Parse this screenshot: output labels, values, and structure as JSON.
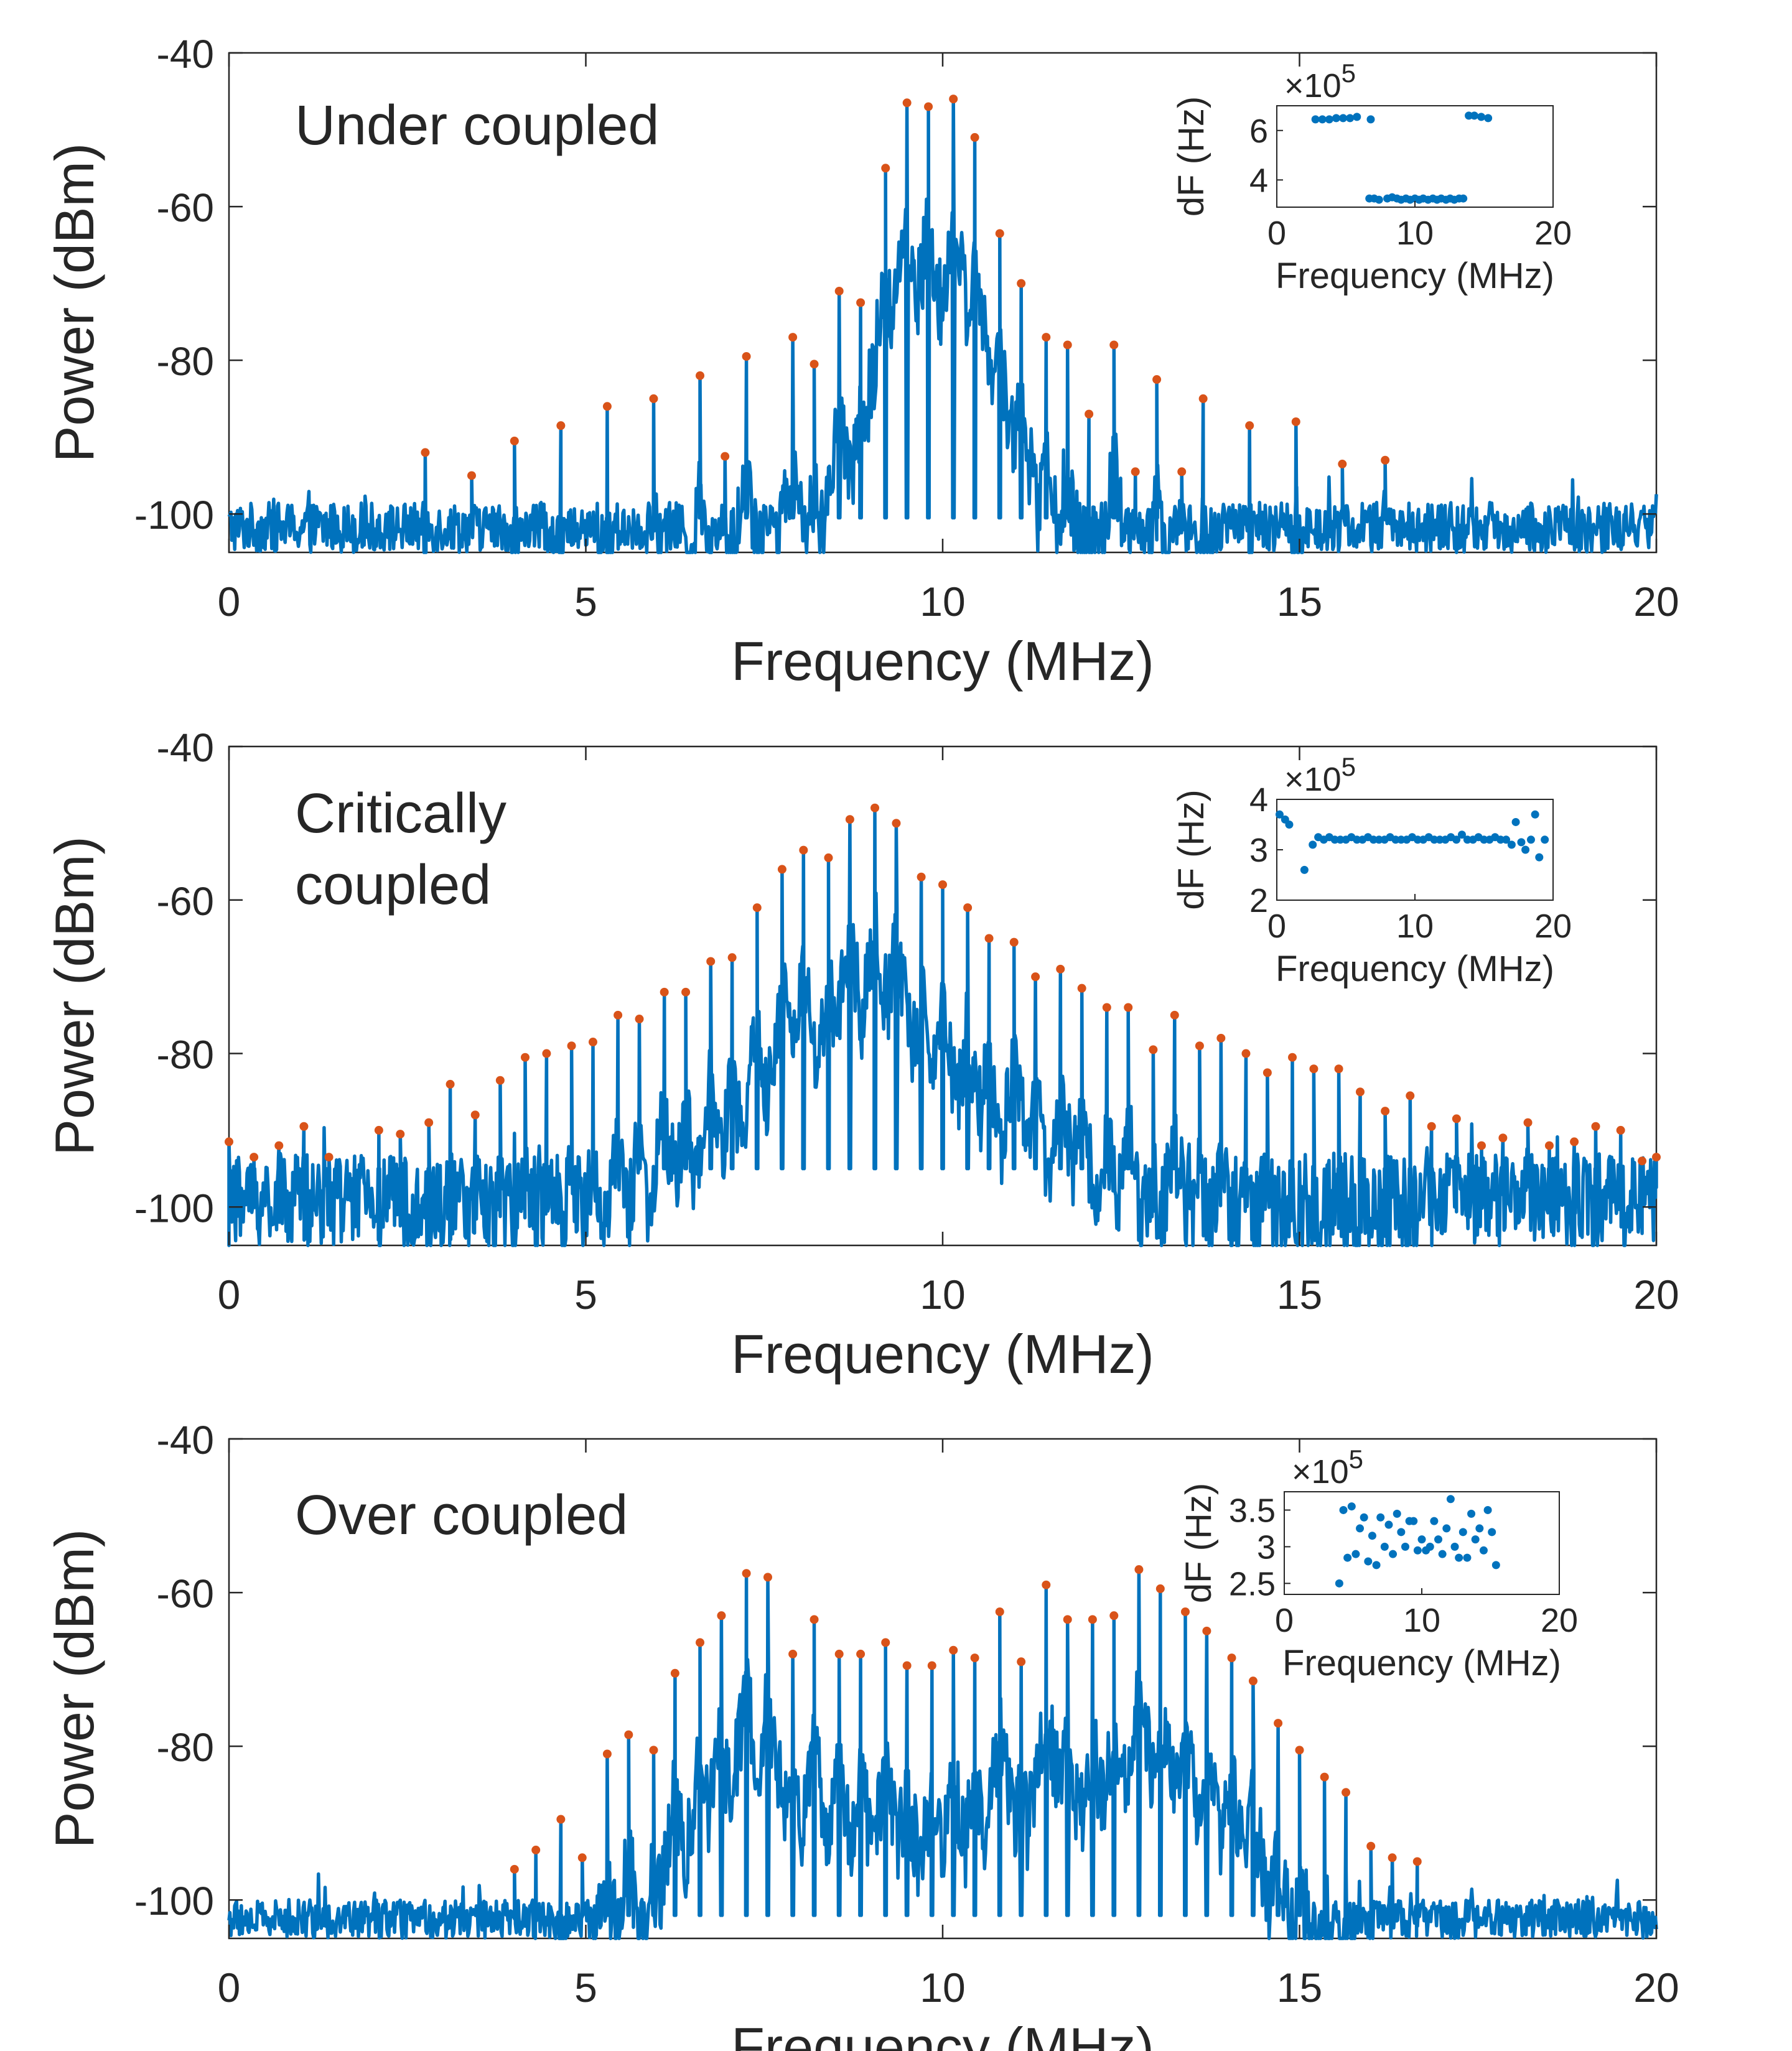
{
  "figure": {
    "colors": {
      "line": "#0072BD",
      "peak_marker": "#D95319",
      "axes": "#262626",
      "inset_points": "#0072BD"
    }
  },
  "chart_data": [
    {
      "type": "line",
      "annotation": "Under coupled",
      "xlabel": "Frequency (MHz)",
      "ylabel": "Power (dBm)",
      "xlim": [
        0,
        20
      ],
      "ylim": [
        -105,
        -40
      ],
      "xticks": [
        0,
        5,
        10,
        15,
        20
      ],
      "yticks": [
        -40,
        -60,
        -80,
        -100
      ],
      "noise_floor": {
        "min": -105,
        "max": -98.5
      },
      "peaks": [
        {
          "x": 2.75,
          "y": -92
        },
        {
          "x": 3.4,
          "y": -95
        },
        {
          "x": 4.0,
          "y": -90.5
        },
        {
          "x": 4.65,
          "y": -88.5
        },
        {
          "x": 5.3,
          "y": -86
        },
        {
          "x": 5.95,
          "y": -85
        },
        {
          "x": 6.6,
          "y": -82
        },
        {
          "x": 6.95,
          "y": -92.5
        },
        {
          "x": 7.25,
          "y": -79.5
        },
        {
          "x": 7.9,
          "y": -77
        },
        {
          "x": 8.2,
          "y": -80.5
        },
        {
          "x": 8.55,
          "y": -71
        },
        {
          "x": 8.85,
          "y": -72.5
        },
        {
          "x": 9.2,
          "y": -55
        },
        {
          "x": 9.5,
          "y": -46.5
        },
        {
          "x": 9.8,
          "y": -47
        },
        {
          "x": 10.15,
          "y": -46
        },
        {
          "x": 10.45,
          "y": -51
        },
        {
          "x": 10.8,
          "y": -63.5
        },
        {
          "x": 11.1,
          "y": -70
        },
        {
          "x": 11.45,
          "y": -77
        },
        {
          "x": 11.75,
          "y": -78
        },
        {
          "x": 12.05,
          "y": -87
        },
        {
          "x": 12.4,
          "y": -78
        },
        {
          "x": 12.7,
          "y": -94.5
        },
        {
          "x": 13.0,
          "y": -82.5
        },
        {
          "x": 13.35,
          "y": -94.5
        },
        {
          "x": 13.65,
          "y": -85
        },
        {
          "x": 14.3,
          "y": -88.5
        },
        {
          "x": 14.95,
          "y": -88
        },
        {
          "x": 15.6,
          "y": -93.5
        },
        {
          "x": 16.2,
          "y": -93
        }
      ],
      "inset": {
        "type": "scatter",
        "ylabel": "dF (Hz)",
        "xlabel": "Frequency (MHz)",
        "exponent_label": "×10",
        "exponent_power": "5",
        "xlim": [
          0,
          20
        ],
        "ylim": [
          2.9,
          7.0
        ],
        "xticks": [
          0,
          10,
          20
        ],
        "yticks": [
          4,
          6
        ],
        "points": [
          {
            "x": 2.8,
            "y": 6.45
          },
          {
            "x": 3.3,
            "y": 6.45
          },
          {
            "x": 3.8,
            "y": 6.45
          },
          {
            "x": 4.3,
            "y": 6.5
          },
          {
            "x": 4.8,
            "y": 6.5
          },
          {
            "x": 5.3,
            "y": 6.5
          },
          {
            "x": 5.8,
            "y": 6.55
          },
          {
            "x": 6.8,
            "y": 6.45
          },
          {
            "x": 6.7,
            "y": 3.25
          },
          {
            "x": 7.05,
            "y": 3.25
          },
          {
            "x": 7.4,
            "y": 3.2
          },
          {
            "x": 8.0,
            "y": 3.25
          },
          {
            "x": 8.35,
            "y": 3.3
          },
          {
            "x": 8.7,
            "y": 3.25
          },
          {
            "x": 9.0,
            "y": 3.2
          },
          {
            "x": 9.35,
            "y": 3.25
          },
          {
            "x": 9.65,
            "y": 3.2
          },
          {
            "x": 10.0,
            "y": 3.25
          },
          {
            "x": 10.3,
            "y": 3.2
          },
          {
            "x": 10.6,
            "y": 3.25
          },
          {
            "x": 10.95,
            "y": 3.2
          },
          {
            "x": 11.3,
            "y": 3.25
          },
          {
            "x": 11.6,
            "y": 3.2
          },
          {
            "x": 11.9,
            "y": 3.25
          },
          {
            "x": 12.25,
            "y": 3.2
          },
          {
            "x": 12.55,
            "y": 3.25
          },
          {
            "x": 12.85,
            "y": 3.2
          },
          {
            "x": 13.2,
            "y": 3.25
          },
          {
            "x": 13.5,
            "y": 3.25
          },
          {
            "x": 13.9,
            "y": 6.6
          },
          {
            "x": 14.3,
            "y": 6.6
          },
          {
            "x": 14.8,
            "y": 6.55
          },
          {
            "x": 15.3,
            "y": 6.5
          }
        ]
      }
    },
    {
      "type": "line",
      "annotation": "Critically\ncoupled",
      "xlabel": "Frequency (MHz)",
      "ylabel": "Power (dBm)",
      "xlim": [
        0,
        20
      ],
      "ylim": [
        -105,
        -40
      ],
      "xticks": [
        0,
        5,
        10,
        15,
        20
      ],
      "yticks": [
        -40,
        -60,
        -80,
        -100
      ],
      "noise_floor": {
        "min": -105,
        "max": -93
      },
      "peaks": [
        {
          "x": 0.0,
          "y": -91.5
        },
        {
          "x": 0.35,
          "y": -93.5
        },
        {
          "x": 0.7,
          "y": -92
        },
        {
          "x": 1.05,
          "y": -89.5
        },
        {
          "x": 1.4,
          "y": -93.5
        },
        {
          "x": 2.1,
          "y": -90
        },
        {
          "x": 2.4,
          "y": -90.5
        },
        {
          "x": 2.8,
          "y": -89
        },
        {
          "x": 3.1,
          "y": -84
        },
        {
          "x": 3.45,
          "y": -88
        },
        {
          "x": 3.8,
          "y": -83.5
        },
        {
          "x": 4.15,
          "y": -80.5
        },
        {
          "x": 4.45,
          "y": -80
        },
        {
          "x": 4.8,
          "y": -79
        },
        {
          "x": 5.1,
          "y": -78.5
        },
        {
          "x": 5.45,
          "y": -75
        },
        {
          "x": 5.75,
          "y": -75.5
        },
        {
          "x": 6.1,
          "y": -72
        },
        {
          "x": 6.4,
          "y": -72
        },
        {
          "x": 6.75,
          "y": -68
        },
        {
          "x": 7.05,
          "y": -67.5
        },
        {
          "x": 7.4,
          "y": -61
        },
        {
          "x": 7.75,
          "y": -56
        },
        {
          "x": 8.05,
          "y": -53.5
        },
        {
          "x": 8.4,
          "y": -54.5
        },
        {
          "x": 8.7,
          "y": -49.5
        },
        {
          "x": 9.05,
          "y": -48
        },
        {
          "x": 9.35,
          "y": -50
        },
        {
          "x": 9.7,
          "y": -57
        },
        {
          "x": 10.0,
          "y": -58
        },
        {
          "x": 10.35,
          "y": -61
        },
        {
          "x": 10.65,
          "y": -65
        },
        {
          "x": 11.0,
          "y": -65.5
        },
        {
          "x": 11.3,
          "y": -70
        },
        {
          "x": 11.65,
          "y": -69
        },
        {
          "x": 11.95,
          "y": -71.5
        },
        {
          "x": 12.3,
          "y": -74
        },
        {
          "x": 12.6,
          "y": -74
        },
        {
          "x": 12.95,
          "y": -79.5
        },
        {
          "x": 13.25,
          "y": -75
        },
        {
          "x": 13.6,
          "y": -79
        },
        {
          "x": 13.9,
          "y": -78
        },
        {
          "x": 14.25,
          "y": -80
        },
        {
          "x": 14.55,
          "y": -82.5
        },
        {
          "x": 14.9,
          "y": -80.5
        },
        {
          "x": 15.2,
          "y": -82
        },
        {
          "x": 15.55,
          "y": -82
        },
        {
          "x": 15.85,
          "y": -85
        },
        {
          "x": 16.2,
          "y": -87.5
        },
        {
          "x": 16.55,
          "y": -85.5
        },
        {
          "x": 16.85,
          "y": -89.5
        },
        {
          "x": 17.2,
          "y": -88.5
        },
        {
          "x": 17.55,
          "y": -92
        },
        {
          "x": 17.85,
          "y": -91
        },
        {
          "x": 18.2,
          "y": -89
        },
        {
          "x": 18.5,
          "y": -92
        },
        {
          "x": 18.85,
          "y": -91.5
        },
        {
          "x": 19.15,
          "y": -89.5
        },
        {
          "x": 19.5,
          "y": -90
        },
        {
          "x": 19.8,
          "y": -94
        },
        {
          "x": 20.0,
          "y": -93.5
        }
      ],
      "inset": {
        "type": "scatter",
        "ylabel": "dF (Hz)",
        "xlabel": "Frequency (MHz)",
        "exponent_label": "×10",
        "exponent_power": "5",
        "xlim": [
          0,
          20
        ],
        "ylim": [
          2.0,
          4.0
        ],
        "xticks": [
          0,
          10,
          20
        ],
        "yticks": [
          2,
          3,
          4
        ],
        "points": [
          {
            "x": 0.2,
            "y": 3.7
          },
          {
            "x": 0.6,
            "y": 3.6
          },
          {
            "x": 0.9,
            "y": 3.5
          },
          {
            "x": 2.0,
            "y": 2.6
          },
          {
            "x": 2.6,
            "y": 3.1
          },
          {
            "x": 3.0,
            "y": 3.25
          },
          {
            "x": 3.4,
            "y": 3.2
          },
          {
            "x": 3.8,
            "y": 3.25
          },
          {
            "x": 4.2,
            "y": 3.2
          },
          {
            "x": 4.6,
            "y": 3.2
          },
          {
            "x": 5.0,
            "y": 3.2
          },
          {
            "x": 5.4,
            "y": 3.25
          },
          {
            "x": 5.8,
            "y": 3.2
          },
          {
            "x": 6.2,
            "y": 3.2
          },
          {
            "x": 6.6,
            "y": 3.25
          },
          {
            "x": 7.0,
            "y": 3.2
          },
          {
            "x": 7.4,
            "y": 3.2
          },
          {
            "x": 7.8,
            "y": 3.2
          },
          {
            "x": 8.2,
            "y": 3.25
          },
          {
            "x": 8.6,
            "y": 3.2
          },
          {
            "x": 9.0,
            "y": 3.2
          },
          {
            "x": 9.4,
            "y": 3.2
          },
          {
            "x": 9.8,
            "y": 3.25
          },
          {
            "x": 10.2,
            "y": 3.2
          },
          {
            "x": 10.6,
            "y": 3.2
          },
          {
            "x": 11.0,
            "y": 3.25
          },
          {
            "x": 11.4,
            "y": 3.2
          },
          {
            "x": 11.8,
            "y": 3.2
          },
          {
            "x": 12.2,
            "y": 3.2
          },
          {
            "x": 12.6,
            "y": 3.25
          },
          {
            "x": 13.0,
            "y": 3.2
          },
          {
            "x": 13.4,
            "y": 3.3
          },
          {
            "x": 13.8,
            "y": 3.2
          },
          {
            "x": 14.2,
            "y": 3.2
          },
          {
            "x": 14.6,
            "y": 3.25
          },
          {
            "x": 15.0,
            "y": 3.2
          },
          {
            "x": 15.4,
            "y": 3.2
          },
          {
            "x": 15.8,
            "y": 3.25
          },
          {
            "x": 16.2,
            "y": 3.2
          },
          {
            "x": 16.6,
            "y": 3.2
          },
          {
            "x": 17.0,
            "y": 3.1
          },
          {
            "x": 17.3,
            "y": 3.55
          },
          {
            "x": 17.7,
            "y": 3.15
          },
          {
            "x": 18.0,
            "y": 3.0
          },
          {
            "x": 18.4,
            "y": 3.2
          },
          {
            "x": 18.7,
            "y": 3.7
          },
          {
            "x": 19.0,
            "y": 2.85
          },
          {
            "x": 19.4,
            "y": 3.2
          }
        ]
      }
    },
    {
      "type": "line",
      "annotation": "Over coupled",
      "xlabel": "Frequency (MHz)",
      "ylabel": "Power (dBm)",
      "xlim": [
        0,
        20
      ],
      "ylim": [
        -105,
        -40
      ],
      "xticks": [
        0,
        5,
        10,
        15,
        20
      ],
      "yticks": [
        -40,
        -60,
        -80,
        -100
      ],
      "noise_floor": {
        "min": -105,
        "max": -100
      },
      "peaks": [
        {
          "x": 4.0,
          "y": -96
        },
        {
          "x": 4.3,
          "y": -93.5
        },
        {
          "x": 4.65,
          "y": -89.5
        },
        {
          "x": 4.95,
          "y": -94.5
        },
        {
          "x": 5.3,
          "y": -81
        },
        {
          "x": 5.6,
          "y": -78.5
        },
        {
          "x": 5.95,
          "y": -80.5
        },
        {
          "x": 6.25,
          "y": -70.5
        },
        {
          "x": 6.6,
          "y": -66.5
        },
        {
          "x": 6.9,
          "y": -63
        },
        {
          "x": 7.25,
          "y": -57.5
        },
        {
          "x": 7.55,
          "y": -58
        },
        {
          "x": 7.9,
          "y": -68
        },
        {
          "x": 8.2,
          "y": -63.5
        },
        {
          "x": 8.55,
          "y": -68
        },
        {
          "x": 8.85,
          "y": -68
        },
        {
          "x": 9.2,
          "y": -66.5
        },
        {
          "x": 9.5,
          "y": -69.5
        },
        {
          "x": 9.85,
          "y": -69.5
        },
        {
          "x": 10.15,
          "y": -67.5
        },
        {
          "x": 10.45,
          "y": -68.5
        },
        {
          "x": 10.8,
          "y": -62.5
        },
        {
          "x": 11.1,
          "y": -69
        },
        {
          "x": 11.45,
          "y": -59
        },
        {
          "x": 11.75,
          "y": -63.5
        },
        {
          "x": 12.1,
          "y": -63.5
        },
        {
          "x": 12.4,
          "y": -63
        },
        {
          "x": 12.75,
          "y": -57
        },
        {
          "x": 13.05,
          "y": -59.5
        },
        {
          "x": 13.4,
          "y": -62.5
        },
        {
          "x": 13.7,
          "y": -65
        },
        {
          "x": 14.05,
          "y": -68.5
        },
        {
          "x": 14.35,
          "y": -71.5
        },
        {
          "x": 14.7,
          "y": -77
        },
        {
          "x": 15.0,
          "y": -80.5
        },
        {
          "x": 15.35,
          "y": -84
        },
        {
          "x": 15.65,
          "y": -86
        },
        {
          "x": 16.0,
          "y": -93
        },
        {
          "x": 16.3,
          "y": -94.5
        },
        {
          "x": 16.65,
          "y": -95
        }
      ],
      "inset": {
        "type": "scatter",
        "ylabel": "dF (Hz)",
        "xlabel": "Frequency (MHz)",
        "exponent_label": "×10",
        "exponent_power": "5",
        "xlim": [
          0,
          20
        ],
        "ylim": [
          2.35,
          3.75
        ],
        "xticks": [
          0,
          10,
          20
        ],
        "yticks": [
          2.5,
          3,
          3.5
        ],
        "points": [
          {
            "x": 4.0,
            "y": 2.5
          },
          {
            "x": 4.3,
            "y": 3.5
          },
          {
            "x": 4.6,
            "y": 2.85
          },
          {
            "x": 4.9,
            "y": 3.55
          },
          {
            "x": 5.2,
            "y": 2.9
          },
          {
            "x": 5.5,
            "y": 3.25
          },
          {
            "x": 5.8,
            "y": 3.4
          },
          {
            "x": 6.1,
            "y": 2.8
          },
          {
            "x": 6.4,
            "y": 3.15
          },
          {
            "x": 6.7,
            "y": 2.75
          },
          {
            "x": 7.0,
            "y": 3.4
          },
          {
            "x": 7.3,
            "y": 3.0
          },
          {
            "x": 7.6,
            "y": 3.3
          },
          {
            "x": 7.9,
            "y": 2.9
          },
          {
            "x": 8.2,
            "y": 3.45
          },
          {
            "x": 8.5,
            "y": 3.2
          },
          {
            "x": 8.8,
            "y": 3.0
          },
          {
            "x": 9.1,
            "y": 3.35
          },
          {
            "x": 9.4,
            "y": 3.35
          },
          {
            "x": 9.7,
            "y": 2.95
          },
          {
            "x": 10.0,
            "y": 3.1
          },
          {
            "x": 10.3,
            "y": 2.95
          },
          {
            "x": 10.6,
            "y": 3.0
          },
          {
            "x": 10.9,
            "y": 3.35
          },
          {
            "x": 11.2,
            "y": 3.1
          },
          {
            "x": 11.5,
            "y": 2.9
          },
          {
            "x": 11.8,
            "y": 3.25
          },
          {
            "x": 12.1,
            "y": 3.65
          },
          {
            "x": 12.4,
            "y": 3.0
          },
          {
            "x": 12.7,
            "y": 2.85
          },
          {
            "x": 13.0,
            "y": 3.2
          },
          {
            "x": 13.3,
            "y": 2.85
          },
          {
            "x": 13.6,
            "y": 3.45
          },
          {
            "x": 13.9,
            "y": 3.1
          },
          {
            "x": 14.2,
            "y": 3.25
          },
          {
            "x": 14.5,
            "y": 2.95
          },
          {
            "x": 14.8,
            "y": 3.5
          },
          {
            "x": 15.1,
            "y": 3.2
          },
          {
            "x": 15.4,
            "y": 2.75
          }
        ]
      }
    }
  ]
}
